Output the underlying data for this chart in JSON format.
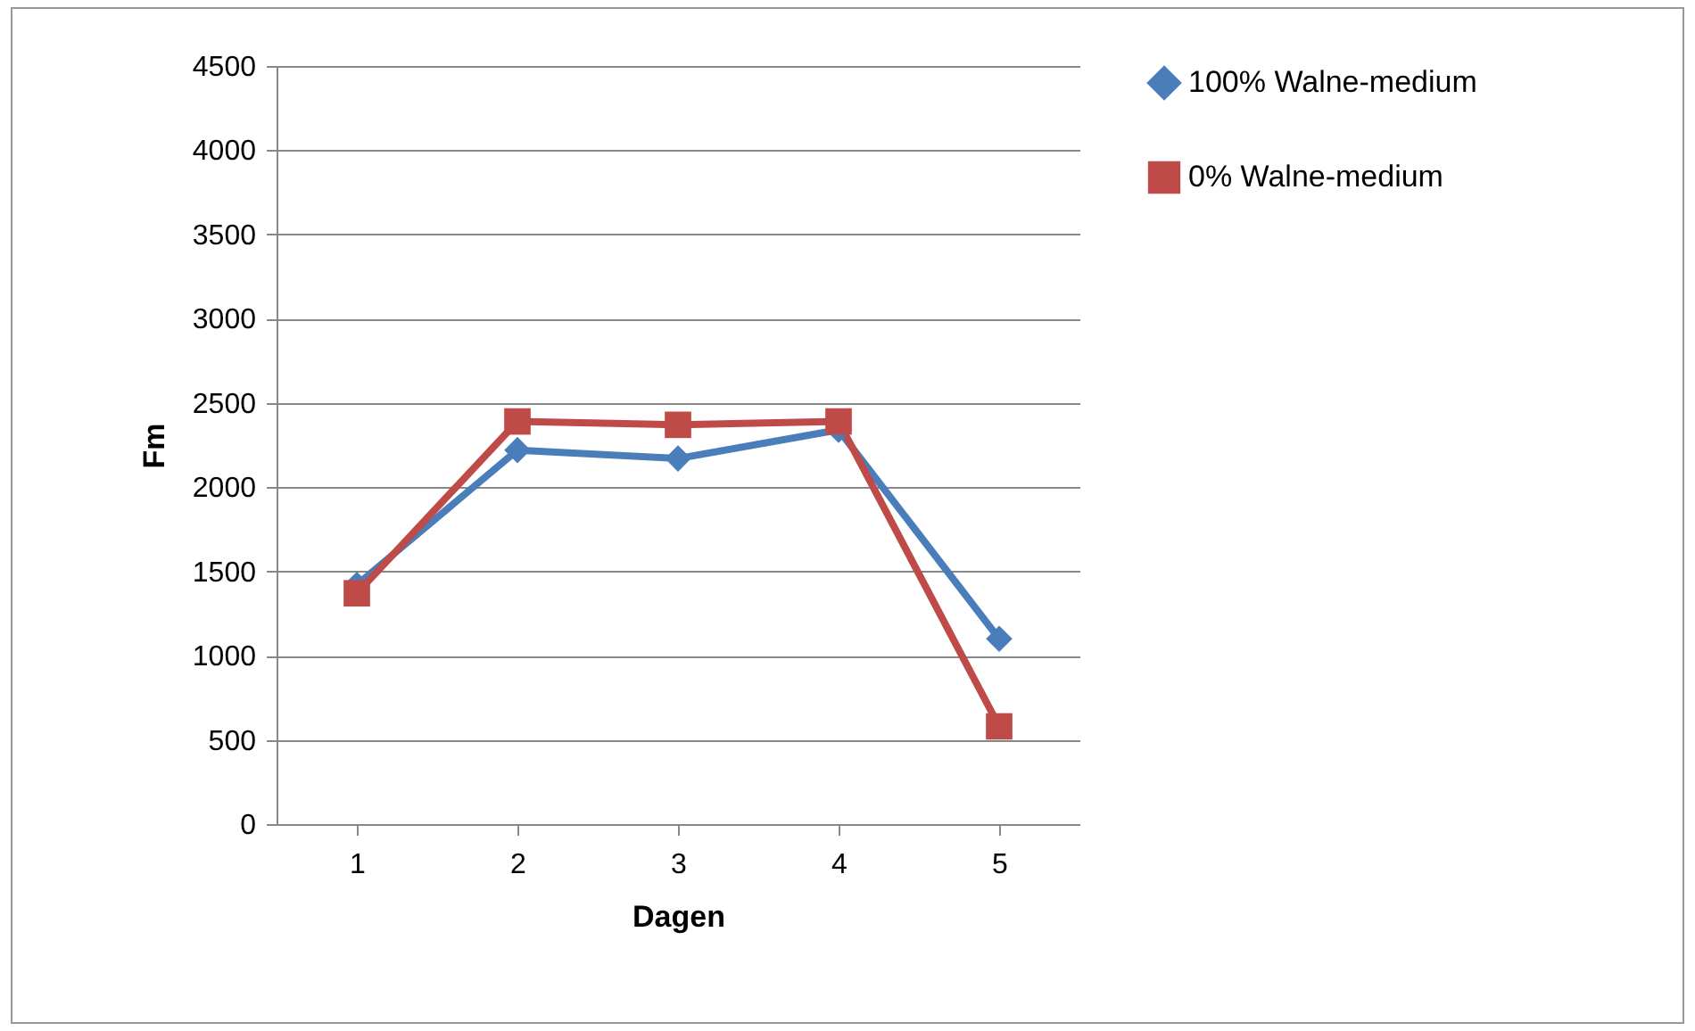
{
  "chart_data": {
    "type": "line",
    "xlabel": "Dagen",
    "ylabel": "Fm",
    "categories": [
      "1",
      "2",
      "3",
      "4",
      "5"
    ],
    "series": [
      {
        "name": "100% Walne-medium",
        "color": "#4a7ebb",
        "marker": "diamond",
        "values": [
          1420,
          2220,
          2170,
          2340,
          1100
        ]
      },
      {
        "name": "0% Walne-medium",
        "color": "#be4b48",
        "marker": "square",
        "values": [
          1370,
          2390,
          2370,
          2390,
          580
        ]
      }
    ],
    "ylim": [
      0,
      4500
    ],
    "yticks": [
      0,
      500,
      1000,
      1500,
      2000,
      2500,
      3000,
      3500,
      4000,
      4500
    ],
    "grid": "y",
    "legend": "right"
  }
}
